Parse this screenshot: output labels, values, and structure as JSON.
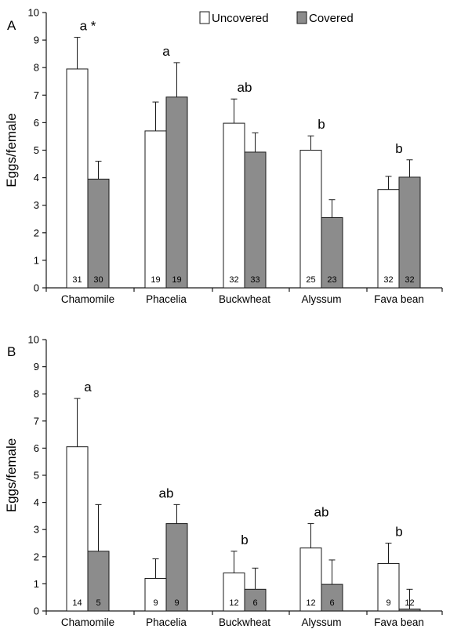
{
  "chart_data": [
    {
      "type": "bar",
      "panel_label": "A",
      "ylabel": "Eggs/female",
      "ylim": [
        0,
        10
      ],
      "yticks": [
        0,
        1,
        2,
        3,
        4,
        5,
        6,
        7,
        8,
        9,
        10
      ],
      "categories": [
        "Chamomile",
        "Phacelia",
        "Buckwheat",
        "Alyssum",
        "Fava bean"
      ],
      "series": [
        {
          "name": "Uncovered",
          "color": "#ffffff",
          "values": [
            7.95,
            5.7,
            5.98,
            5.0,
            3.57
          ],
          "errors": [
            1.15,
            1.05,
            0.88,
            0.52,
            0.48
          ],
          "n": [
            "31",
            "19",
            "32",
            "25",
            "32"
          ]
        },
        {
          "name": "Covered",
          "color": "#8c8c8c",
          "values": [
            3.95,
            6.93,
            4.93,
            2.55,
            4.02
          ],
          "errors": [
            0.65,
            1.25,
            0.7,
            0.65,
            0.63
          ],
          "n": [
            "30",
            "19",
            "33",
            "23",
            "32"
          ]
        }
      ],
      "significance": [
        "a *",
        "a",
        "ab",
        "b",
        "b"
      ],
      "legend": {
        "position": "top-right",
        "orientation": "horizontal"
      }
    },
    {
      "type": "bar",
      "panel_label": "B",
      "ylabel": "Eggs/female",
      "ylim": [
        0,
        10
      ],
      "yticks": [
        0,
        1,
        2,
        3,
        4,
        5,
        6,
        7,
        8,
        9,
        10
      ],
      "categories": [
        "Chamomile",
        "Phacelia",
        "Buckwheat",
        "Alyssum",
        "Fava bean"
      ],
      "series": [
        {
          "name": "Uncovered",
          "color": "#ffffff",
          "values": [
            6.05,
            1.2,
            1.4,
            2.32,
            1.75
          ],
          "errors": [
            1.78,
            0.72,
            0.8,
            0.9,
            0.75
          ],
          "n": [
            "14",
            "9",
            "12",
            "12",
            "9"
          ]
        },
        {
          "name": "Covered",
          "color": "#8c8c8c",
          "values": [
            2.2,
            3.22,
            0.8,
            0.98,
            0.07
          ],
          "errors": [
            1.72,
            0.7,
            0.78,
            0.9,
            0.73
          ],
          "n": [
            "5",
            "9",
            "6",
            "6",
            "12"
          ]
        }
      ],
      "significance": [
        "a",
        "ab",
        "b",
        "ab",
        "b"
      ]
    }
  ]
}
